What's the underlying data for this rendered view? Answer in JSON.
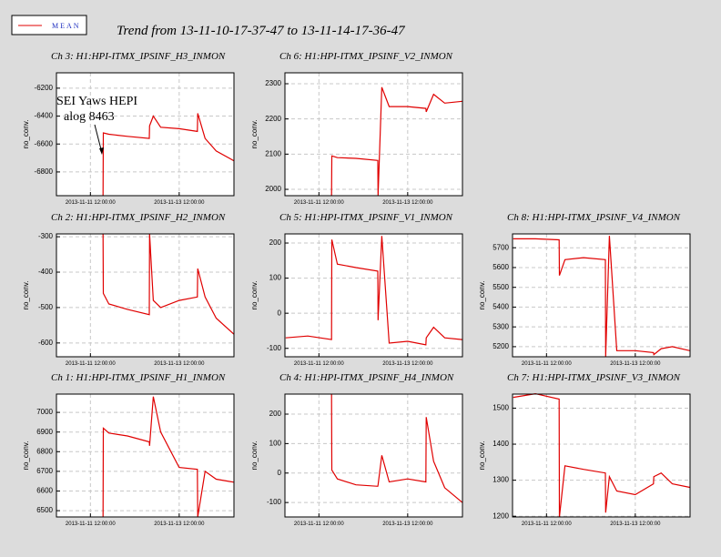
{
  "title": "Trend from 13-11-10-17-37-47 to 13-11-14-17-36-47",
  "annotation": [
    "SEI Yaws HEPI",
    "alog 8463"
  ],
  "chart_data": [
    {
      "type": "line",
      "title": "Ch 3: H1:HPI-ITMX_IPSINF_H3_INMON",
      "ylabel": "no_conv.",
      "grid": true,
      "xlim": [
        "2013-11-10 17:37:47",
        "2013-11-14 17:36:47"
      ],
      "xticks": [
        "2013-11-11 12:00:00",
        "2013-11-13 12:00:00"
      ],
      "ylim": [
        -6970,
        -6090
      ],
      "yticks": [
        -6200,
        -6400,
        -6600,
        -6800
      ],
      "x": [
        "2013-11-10 18:00:00",
        "2013-11-11 06:00:00",
        "2013-11-11 18:50:00",
        "2013-11-11 19:00:00",
        "2013-11-11 22:00:00",
        "2013-11-12 08:00:00",
        "2013-11-12 19:50:00",
        "2013-11-12 20:00:00",
        "2013-11-12 22:00:00",
        "2013-11-13 02:00:00",
        "2013-11-13 12:00:00",
        "2013-11-13 21:50:00",
        "2013-11-13 22:00:00",
        "2013-11-14 02:00:00",
        "2013-11-14 08:00:00",
        "2013-11-14 17:30:00"
      ],
      "series": [
        {
          "name": "MEAN",
          "color": "#e00000",
          "values": [
            null,
            null,
            -6970,
            -6520,
            -6530,
            -6545,
            -6560,
            -6470,
            -6400,
            -6480,
            -6490,
            -6510,
            -6380,
            -6560,
            -6650,
            -6720
          ]
        }
      ]
    },
    {
      "type": "line",
      "title": "Ch 6: H1:HPI-ITMX_IPSINF_V2_INMON",
      "ylabel": "no_conv.",
      "grid": true,
      "xlim": [
        "2013-11-10 17:37:47",
        "2013-11-14 17:36:47"
      ],
      "xticks": [
        "2013-11-11 12:00:00",
        "2013-11-13 12:00:00"
      ],
      "ylim": [
        1982,
        2331
      ],
      "yticks": [
        2000,
        2100,
        2200,
        2300
      ],
      "x": [
        "2013-11-10 18:00:00",
        "2013-11-11 06:00:00",
        "2013-11-11 18:50:00",
        "2013-11-11 19:00:00",
        "2013-11-11 22:00:00",
        "2013-11-12 08:00:00",
        "2013-11-12 19:50:00",
        "2013-11-12 20:00:00",
        "2013-11-12 22:00:00",
        "2013-11-13 02:00:00",
        "2013-11-13 12:00:00",
        "2013-11-13 21:50:00",
        "2013-11-13 22:00:00",
        "2013-11-14 02:00:00",
        "2013-11-14 08:00:00",
        "2013-11-14 17:30:00"
      ],
      "series": [
        {
          "name": "MEAN",
          "color": "#e00000",
          "values": [
            null,
            null,
            1982,
            2095,
            2090,
            2088,
            2082,
            1982,
            2290,
            2235,
            2235,
            2230,
            2220,
            2270,
            2245,
            2250
          ]
        }
      ]
    },
    {
      "type": "line",
      "title": "Ch 2: H1:HPI-ITMX_IPSINF_H2_INMON",
      "ylabel": "no_conv.",
      "grid": true,
      "xlim": [
        "2013-11-10 17:37:47",
        "2013-11-14 17:36:47"
      ],
      "xticks": [
        "2013-11-11 12:00:00",
        "2013-11-13 12:00:00"
      ],
      "ylim": [
        -639,
        -292
      ],
      "yticks": [
        -300,
        -400,
        -500,
        -600
      ],
      "x": [
        "2013-11-10 18:00:00",
        "2013-11-11 06:00:00",
        "2013-11-11 18:50:00",
        "2013-11-11 19:00:00",
        "2013-11-11 22:00:00",
        "2013-11-12 08:00:00",
        "2013-11-12 19:50:00",
        "2013-11-12 20:00:00",
        "2013-11-12 22:00:00",
        "2013-11-13 02:00:00",
        "2013-11-13 12:00:00",
        "2013-11-13 21:50:00",
        "2013-11-13 22:00:00",
        "2013-11-14 02:00:00",
        "2013-11-14 08:00:00",
        "2013-11-14 17:30:00"
      ],
      "series": [
        {
          "name": "MEAN",
          "color": "#e00000",
          "values": [
            null,
            null,
            -292,
            -460,
            -490,
            -505,
            -520,
            -292,
            -480,
            -500,
            -480,
            -470,
            -390,
            -470,
            -530,
            -575
          ]
        }
      ]
    },
    {
      "type": "line",
      "title": "Ch 5: H1:HPI-ITMX_IPSINF_V1_INMON",
      "ylabel": "no_conv.",
      "grid": true,
      "xlim": [
        "2013-11-10 17:37:47",
        "2013-11-14 17:36:47"
      ],
      "xticks": [
        "2013-11-11 12:00:00",
        "2013-11-13 12:00:00"
      ],
      "ylim": [
        -124,
        226
      ],
      "yticks": [
        200,
        100,
        0,
        -100
      ],
      "x": [
        "2013-11-10 18:00:00",
        "2013-11-11 06:00:00",
        "2013-11-11 18:50:00",
        "2013-11-11 19:00:00",
        "2013-11-11 22:00:00",
        "2013-11-12 08:00:00",
        "2013-11-12 19:50:00",
        "2013-11-12 20:00:00",
        "2013-11-12 22:00:00",
        "2013-11-13 02:00:00",
        "2013-11-13 12:00:00",
        "2013-11-13 21:50:00",
        "2013-11-13 22:00:00",
        "2013-11-14 02:00:00",
        "2013-11-14 08:00:00",
        "2013-11-14 17:30:00"
      ],
      "series": [
        {
          "name": "MEAN",
          "color": "#e00000",
          "values": [
            -70,
            -65,
            -75,
            210,
            140,
            130,
            120,
            -20,
            220,
            -85,
            -80,
            -90,
            -70,
            -40,
            -70,
            -75
          ]
        }
      ]
    },
    {
      "type": "line",
      "title": "Ch 8: H1:HPI-ITMX_IPSINF_V4_INMON",
      "ylabel": "no_conv.",
      "grid": true,
      "xlim": [
        "2013-11-10 17:37:47",
        "2013-11-14 17:36:47"
      ],
      "xticks": [
        "2013-11-11 12:00:00",
        "2013-11-13 12:00:00"
      ],
      "ylim": [
        5149,
        5770
      ],
      "yticks": [
        5700,
        5600,
        5500,
        5400,
        5300,
        5200
      ],
      "x": [
        "2013-11-10 18:00:00",
        "2013-11-11 06:00:00",
        "2013-11-11 18:50:00",
        "2013-11-11 19:00:00",
        "2013-11-11 22:00:00",
        "2013-11-12 08:00:00",
        "2013-11-12 19:50:00",
        "2013-11-12 20:00:00",
        "2013-11-12 22:00:00",
        "2013-11-13 02:00:00",
        "2013-11-13 12:00:00",
        "2013-11-13 21:50:00",
        "2013-11-13 22:00:00",
        "2013-11-14 02:00:00",
        "2013-11-14 08:00:00",
        "2013-11-14 17:30:00"
      ],
      "series": [
        {
          "name": "MEAN",
          "color": "#e00000",
          "values": [
            5745,
            5745,
            5740,
            5560,
            5640,
            5650,
            5640,
            5149,
            5760,
            5180,
            5180,
            5170,
            5160,
            5190,
            5200,
            5180
          ]
        }
      ]
    },
    {
      "type": "line",
      "title": "Ch 1: H1:HPI-ITMX_IPSINF_H1_INMON",
      "ylabel": "no_conv.",
      "grid": true,
      "xlim": [
        "2013-11-10 17:37:47",
        "2013-11-14 17:36:47"
      ],
      "xticks": [
        "2013-11-11 12:00:00",
        "2013-11-13 12:00:00"
      ],
      "ylim": [
        6468,
        7093
      ],
      "yticks": [
        7000,
        6900,
        6800,
        6700,
        6600,
        6500
      ],
      "x": [
        "2013-11-10 18:00:00",
        "2013-11-11 06:00:00",
        "2013-11-11 18:50:00",
        "2013-11-11 19:00:00",
        "2013-11-11 22:00:00",
        "2013-11-12 08:00:00",
        "2013-11-12 19:50:00",
        "2013-11-12 20:00:00",
        "2013-11-12 22:00:00",
        "2013-11-13 02:00:00",
        "2013-11-13 12:00:00",
        "2013-11-13 21:50:00",
        "2013-11-13 22:00:00",
        "2013-11-14 02:00:00",
        "2013-11-14 08:00:00",
        "2013-11-14 17:30:00"
      ],
      "series": [
        {
          "name": "MEAN",
          "color": "#e00000",
          "values": [
            null,
            null,
            6468,
            6920,
            6895,
            6880,
            6850,
            6830,
            7080,
            6900,
            6720,
            6710,
            6468,
            6700,
            6660,
            6645
          ]
        }
      ]
    },
    {
      "type": "line",
      "title": "Ch 4: H1:HPI-ITMX_IPSINF_H4_INMON",
      "ylabel": "no_conv.",
      "grid": true,
      "xlim": [
        "2013-11-10 17:37:47",
        "2013-11-14 17:36:47"
      ],
      "xticks": [
        "2013-11-11 12:00:00",
        "2013-11-13 12:00:00"
      ],
      "ylim": [
        -149,
        268
      ],
      "yticks": [
        200,
        100,
        0,
        -100
      ],
      "x": [
        "2013-11-10 18:00:00",
        "2013-11-11 06:00:00",
        "2013-11-11 18:50:00",
        "2013-11-11 19:00:00",
        "2013-11-11 22:00:00",
        "2013-11-12 08:00:00",
        "2013-11-12 19:50:00",
        "2013-11-12 20:00:00",
        "2013-11-12 22:00:00",
        "2013-11-13 02:00:00",
        "2013-11-13 12:00:00",
        "2013-11-13 21:50:00",
        "2013-11-13 22:00:00",
        "2013-11-14 02:00:00",
        "2013-11-14 08:00:00",
        "2013-11-14 17:30:00"
      ],
      "series": [
        {
          "name": "MEAN",
          "color": "#e00000",
          "values": [
            null,
            null,
            268,
            10,
            -20,
            -40,
            -45,
            -40,
            60,
            -30,
            -20,
            -30,
            190,
            40,
            -50,
            -100
          ]
        }
      ]
    },
    {
      "type": "line",
      "title": "Ch 7: H1:HPI-ITMX_IPSINF_V3_INMON",
      "ylabel": "no_conv.",
      "grid": true,
      "xlim": [
        "2013-11-10 17:37:47",
        "2013-11-14 17:36:47"
      ],
      "xticks": [
        "2013-11-11 12:00:00",
        "2013-11-13 12:00:00"
      ],
      "ylim": [
        1198,
        1539
      ],
      "yticks": [
        1500,
        1400,
        1300,
        1200
      ],
      "x": [
        "2013-11-10 18:00:00",
        "2013-11-11 06:00:00",
        "2013-11-11 18:50:00",
        "2013-11-11 19:00:00",
        "2013-11-11 22:00:00",
        "2013-11-12 08:00:00",
        "2013-11-12 19:50:00",
        "2013-11-12 20:00:00",
        "2013-11-12 22:00:00",
        "2013-11-13 02:00:00",
        "2013-11-13 12:00:00",
        "2013-11-13 21:50:00",
        "2013-11-13 22:00:00",
        "2013-11-14 02:00:00",
        "2013-11-14 08:00:00",
        "2013-11-14 17:30:00"
      ],
      "series": [
        {
          "name": "MEAN",
          "color": "#e00000",
          "values": [
            1530,
            1540,
            1525,
            1198,
            1340,
            1330,
            1320,
            1210,
            1310,
            1270,
            1260,
            1290,
            1310,
            1320,
            1290,
            1280
          ]
        }
      ]
    }
  ]
}
